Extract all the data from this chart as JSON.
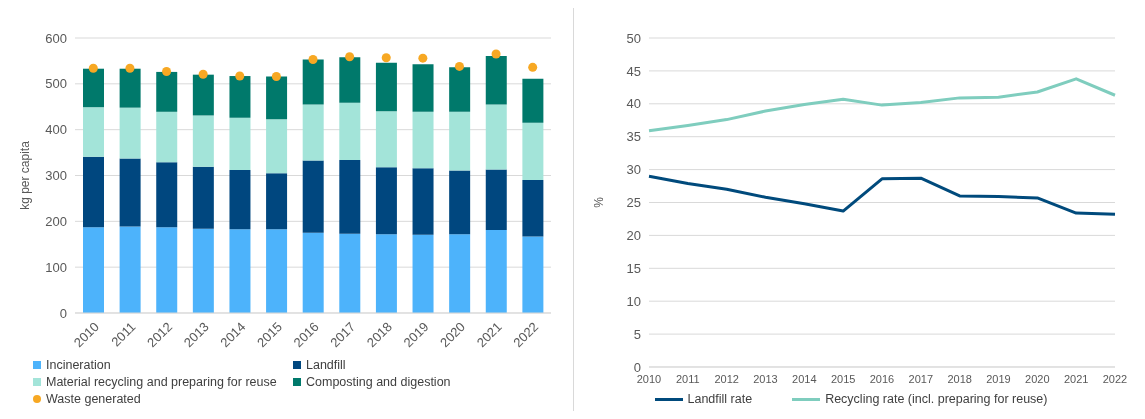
{
  "chart_data": [
    {
      "type": "bar",
      "stacked": true,
      "ylabel": "kg per capita",
      "ylim": [
        0,
        600
      ],
      "yticks": [
        0,
        100,
        200,
        300,
        400,
        500,
        600
      ],
      "grid": "y",
      "legend": "bottom",
      "categories": [
        "2010",
        "2011",
        "2012",
        "2013",
        "2014",
        "2015",
        "2016",
        "2017",
        "2018",
        "2019",
        "2020",
        "2021",
        "2022"
      ],
      "series": [
        {
          "name": "Incineration",
          "color": "#4db3fb",
          "values": [
            187,
            189,
            187,
            184,
            183,
            183,
            175,
            173,
            172,
            171,
            172,
            181,
            167
          ]
        },
        {
          "name": "Landfill",
          "color": "#00477f",
          "values": [
            154,
            148,
            142,
            135,
            129,
            122,
            158,
            161,
            146,
            145,
            139,
            132,
            123
          ]
        },
        {
          "name": "Material recycling and preparing for reuse",
          "color": "#a3e4d9",
          "values": [
            108,
            111,
            110,
            112,
            114,
            118,
            122,
            125,
            122,
            123,
            128,
            142,
            125
          ]
        },
        {
          "name": "Composting and digestion",
          "color": "#00796b",
          "values": [
            84,
            85,
            87,
            89,
            91,
            93,
            98,
            99,
            106,
            104,
            97,
            106,
            96
          ]
        },
        {
          "name": "Waste generated",
          "type": "scatter",
          "marker": "circle",
          "color": "#f7a823",
          "values": [
            534,
            534,
            527,
            521,
            517,
            516,
            553,
            559,
            557,
            556,
            538,
            565,
            536
          ]
        }
      ]
    },
    {
      "type": "line",
      "ylabel": "%",
      "ylim": [
        0,
        50
      ],
      "yticks": [
        0,
        5,
        10,
        15,
        20,
        25,
        30,
        35,
        40,
        45,
        50
      ],
      "grid": "y",
      "legend": "bottom",
      "marker": "none",
      "line_style": "solid",
      "categories": [
        "2010",
        "2011",
        "2012",
        "2013",
        "2014",
        "2015",
        "2016",
        "2017",
        "2018",
        "2019",
        "2020",
        "2021",
        "2022"
      ],
      "series": [
        {
          "name": "Landfill rate",
          "color": "#004a7c",
          "values": [
            29.0,
            27.9,
            27.0,
            25.8,
            24.8,
            23.7,
            28.6,
            28.7,
            26.0,
            25.9,
            25.7,
            23.4,
            23.2
          ]
        },
        {
          "name": "Recycling rate (incl. preparing for reuse)",
          "color": "#7fcdbe",
          "values": [
            35.9,
            36.7,
            37.6,
            38.9,
            39.9,
            40.7,
            39.8,
            40.2,
            40.9,
            41.0,
            41.8,
            43.8,
            41.3
          ]
        }
      ]
    }
  ]
}
